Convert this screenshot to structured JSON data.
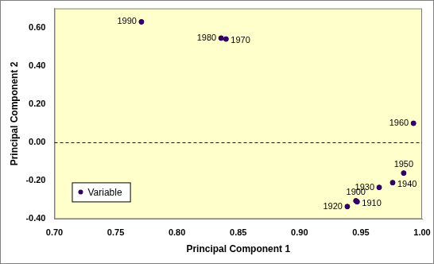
{
  "chart_data": {
    "type": "scatter",
    "x_label": "Principal Component 1",
    "y_label": "Principal Component 2",
    "series": [
      {
        "name": "Variable",
        "color": "#330066",
        "marker": "circle",
        "labels": [
          "1900",
          "1910",
          "1920",
          "1930",
          "1940",
          "1950",
          "1960",
          "1970",
          "1980",
          "1990"
        ],
        "x": [
          0.946,
          0.947,
          0.939,
          0.965,
          0.976,
          0.985,
          0.993,
          0.84,
          0.836,
          0.771
        ],
        "values": [
          -0.305,
          -0.31,
          -0.335,
          -0.235,
          -0.21,
          -0.16,
          0.1,
          0.54,
          0.545,
          0.63
        ]
      }
    ],
    "xlim": [
      0.7,
      1.0
    ],
    "xticks": [
      {
        "value": 0.7,
        "label": "0.70"
      },
      {
        "value": 0.75,
        "label": "0.75"
      },
      {
        "value": 0.8,
        "label": "0.80"
      },
      {
        "value": 0.85,
        "label": "0.85"
      },
      {
        "value": 0.9,
        "label": "0.90"
      },
      {
        "value": 0.95,
        "label": "0.95"
      },
      {
        "value": 1.0,
        "label": "1.00"
      }
    ],
    "ylim": [
      -0.4,
      0.7
    ],
    "yticks": [
      {
        "value": -0.4,
        "label": "-0.40"
      },
      {
        "value": -0.2,
        "label": "-0.20"
      },
      {
        "value": 0,
        "label": "0.00"
      },
      {
        "value": 0.2,
        "label": "0.20"
      },
      {
        "value": 0.4,
        "label": "0.40"
      },
      {
        "value": 0.6,
        "label": "0.60"
      }
    ],
    "grid": false,
    "legend": "lower left",
    "annotations": [
      {
        "type": "hline",
        "y": 0,
        "line_style": "dashed",
        "color": "#000080"
      }
    ]
  }
}
